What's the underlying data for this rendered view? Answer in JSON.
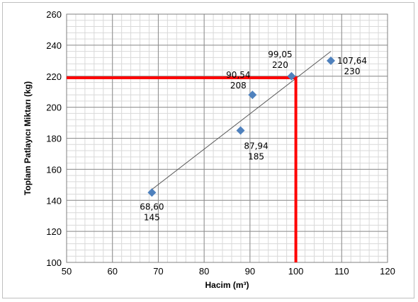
{
  "chart_data": {
    "type": "scatter",
    "title": "",
    "xlabel": "Hacim (m³)",
    "ylabel": "Toplam Patlayıcı Miktarı (kg)",
    "xlim": [
      50,
      120
    ],
    "ylim": [
      100,
      260
    ],
    "x_ticks": [
      "50",
      "60",
      "70",
      "80",
      "90",
      "100",
      "110",
      "120"
    ],
    "y_ticks": [
      "100",
      "120",
      "140",
      "160",
      "180",
      "200",
      "220",
      "240",
      "260"
    ],
    "grid": true,
    "legend": "none",
    "marker_color": "#4f81bd",
    "points": [
      {
        "x": 68.6,
        "y": 145,
        "label_x": "68,60",
        "label_y": "145"
      },
      {
        "x": 87.94,
        "y": 185,
        "label_x": "87,94",
        "label_y": "185"
      },
      {
        "x": 90.54,
        "y": 208,
        "label_x": "90,54",
        "label_y": "208"
      },
      {
        "x": 99.05,
        "y": 220,
        "label_x": "99,05",
        "label_y": "220"
      },
      {
        "x": 107.64,
        "y": 230,
        "label_x": "107,64",
        "label_y": "230"
      }
    ],
    "trendline": {
      "type": "linear",
      "color": "#595959",
      "x_range": [
        68.6,
        107.64
      ],
      "y_range": [
        147,
        236
      ]
    },
    "reference_lines": {
      "color": "#ff0000",
      "x": 100,
      "y": 219
    }
  }
}
